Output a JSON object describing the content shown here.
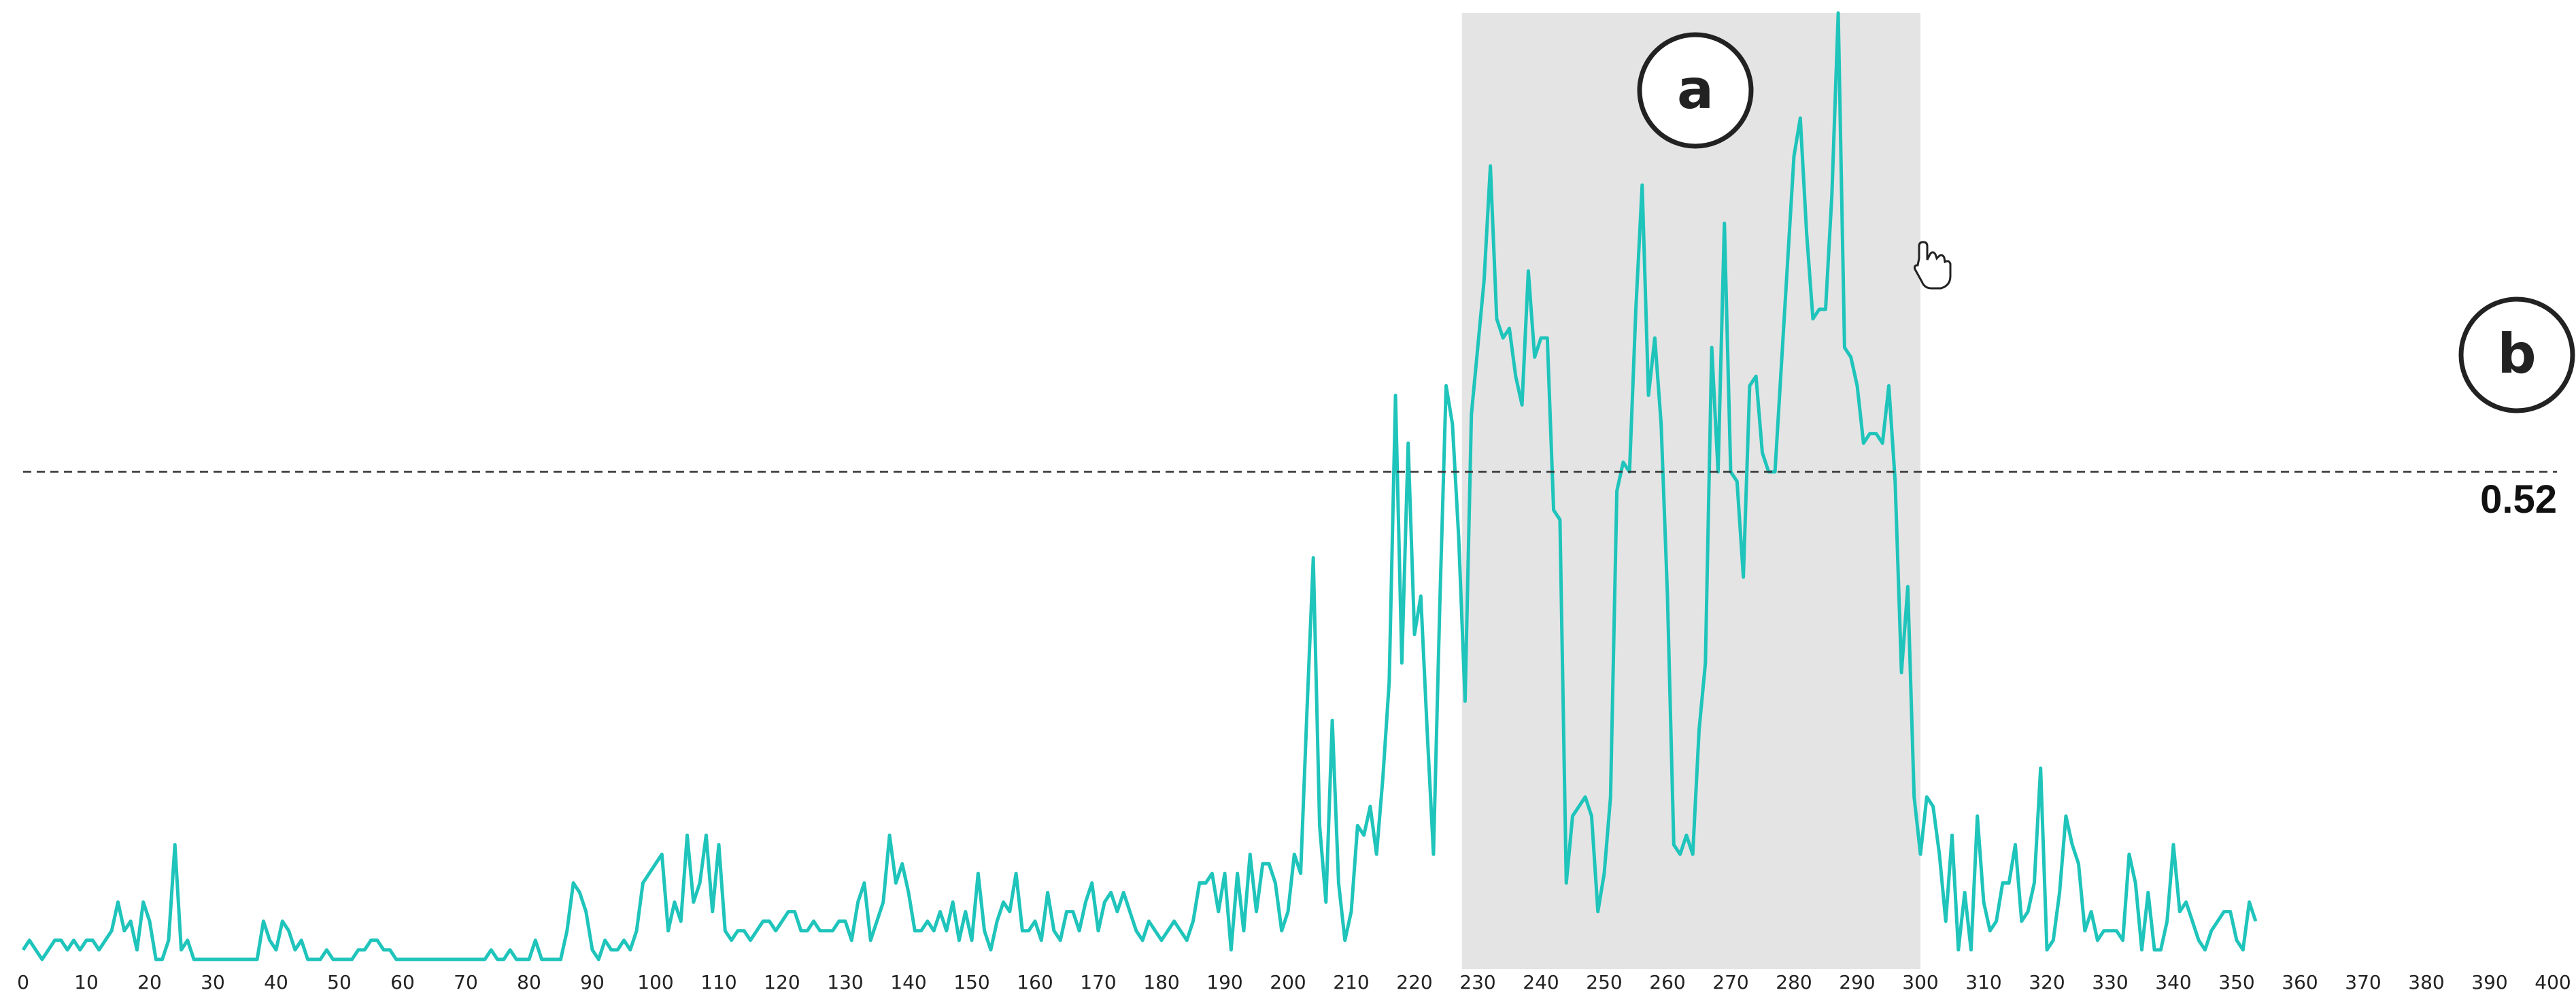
{
  "chart_data": {
    "type": "line",
    "color": "#1fc4bb",
    "xlim": [
      0,
      400
    ],
    "ylim": [
      0,
      1
    ],
    "xticks": [
      0,
      10,
      20,
      30,
      40,
      50,
      60,
      70,
      80,
      90,
      100,
      110,
      120,
      130,
      140,
      150,
      160,
      170,
      180,
      190,
      200,
      210,
      220,
      230,
      240,
      250,
      260,
      270,
      280,
      290,
      300,
      310,
      320,
      330,
      340,
      350,
      360,
      370,
      380,
      390,
      400
    ],
    "highlight": [
      227.5,
      300
    ],
    "threshold": 0.52,
    "annotations": [
      "a",
      "b"
    ],
    "x": [
      0,
      1,
      2,
      3,
      4,
      5,
      6,
      7,
      8,
      9,
      10,
      11,
      12,
      13,
      14,
      15,
      16,
      17,
      18,
      19,
      20,
      21,
      22,
      23,
      24,
      25,
      26,
      27,
      28,
      29,
      30,
      31,
      32,
      33,
      34,
      35,
      36,
      37,
      38,
      39,
      40,
      41,
      42,
      43,
      44,
      45,
      46,
      47,
      48,
      49,
      50,
      51,
      52,
      53,
      54,
      55,
      56,
      57,
      58,
      59,
      60,
      61,
      62,
      63,
      64,
      65,
      66,
      67,
      68,
      69,
      70,
      71,
      72,
      73,
      74,
      75,
      76,
      77,
      78,
      79,
      80,
      81,
      82,
      83,
      84,
      85,
      86,
      87,
      88,
      89,
      90,
      91,
      92,
      93,
      94,
      95,
      96,
      97,
      98,
      99,
      100,
      101,
      102,
      103,
      104,
      105,
      106,
      107,
      108,
      109,
      110,
      111,
      112,
      113,
      114,
      115,
      116,
      117,
      118,
      119,
      120,
      121,
      122,
      123,
      124,
      125,
      126,
      127,
      128,
      129,
      130,
      131,
      132,
      133,
      134,
      135,
      136,
      137,
      138,
      139,
      140,
      141,
      142,
      143,
      144,
      145,
      146,
      147,
      148,
      149,
      150,
      151,
      152,
      153,
      154,
      155,
      156,
      157,
      158,
      159,
      160,
      161,
      162,
      163,
      164,
      165,
      166,
      167,
      168,
      169,
      170,
      171,
      172,
      173,
      174,
      175,
      176,
      177,
      178,
      179,
      180,
      181,
      182,
      183,
      184,
      185,
      186,
      187,
      188,
      189,
      190,
      191,
      192,
      193,
      194,
      195,
      196,
      197,
      198,
      199,
      200,
      201,
      202,
      203,
      204,
      205,
      206,
      207,
      208,
      209,
      210,
      211,
      212,
      213,
      214,
      215,
      216,
      217,
      218,
      219,
      220,
      221,
      222,
      223,
      224,
      225,
      226,
      227,
      228,
      229,
      230,
      231,
      232,
      233,
      234,
      235,
      236,
      237,
      238,
      239,
      240,
      241,
      242,
      243,
      244,
      245,
      246,
      247,
      248,
      249,
      250,
      251,
      252,
      253,
      254,
      255,
      256,
      257,
      258,
      259,
      260,
      261,
      262,
      263,
      264,
      265,
      266,
      267,
      268,
      269,
      270,
      271,
      272,
      273,
      274,
      275,
      276,
      277,
      278,
      279,
      280,
      281,
      282,
      283,
      284,
      285,
      286,
      287,
      288,
      289,
      290,
      291,
      292,
      293,
      294,
      295,
      296,
      297,
      298,
      299,
      300,
      301,
      302,
      303,
      304,
      305,
      306,
      307,
      308,
      309,
      310,
      311,
      312,
      313,
      314,
      315,
      316,
      317,
      318,
      319,
      320,
      321,
      322,
      323,
      324,
      325,
      326,
      327,
      328,
      329,
      330,
      331,
      332,
      333,
      334,
      335,
      336,
      337,
      338,
      339,
      340,
      341,
      342,
      343,
      344,
      345,
      346,
      347,
      348,
      349,
      350,
      351,
      352,
      353
    ],
    "values": [
      0.02,
      0.03,
      0.02,
      0.01,
      0.02,
      0.03,
      0.03,
      0.02,
      0.03,
      0.02,
      0.03,
      0.03,
      0.02,
      0.03,
      0.04,
      0.07,
      0.04,
      0.05,
      0.02,
      0.07,
      0.05,
      0.01,
      0.01,
      0.03,
      0.13,
      0.02,
      0.03,
      0.01,
      0.01,
      0.01,
      0.01,
      0.01,
      0.01,
      0.01,
      0.01,
      0.01,
      0.01,
      0.01,
      0.05,
      0.03,
      0.02,
      0.05,
      0.04,
      0.02,
      0.03,
      0.01,
      0.01,
      0.01,
      0.02,
      0.01,
      0.01,
      0.01,
      0.01,
      0.02,
      0.02,
      0.03,
      0.03,
      0.02,
      0.02,
      0.01,
      0.01,
      0.01,
      0.01,
      0.01,
      0.01,
      0.01,
      0.01,
      0.01,
      0.01,
      0.01,
      0.01,
      0.01,
      0.01,
      0.01,
      0.02,
      0.01,
      0.01,
      0.02,
      0.01,
      0.01,
      0.01,
      0.03,
      0.01,
      0.01,
      0.01,
      0.01,
      0.04,
      0.09,
      0.08,
      0.06,
      0.02,
      0.01,
      0.03,
      0.02,
      0.02,
      0.03,
      0.02,
      0.04,
      0.09,
      0.1,
      0.11,
      0.12,
      0.04,
      0.07,
      0.05,
      0.14,
      0.07,
      0.09,
      0.14,
      0.06,
      0.13,
      0.04,
      0.03,
      0.04,
      0.04,
      0.03,
      0.04,
      0.05,
      0.05,
      0.04,
      0.05,
      0.06,
      0.06,
      0.04,
      0.04,
      0.05,
      0.04,
      0.04,
      0.04,
      0.05,
      0.05,
      0.03,
      0.07,
      0.09,
      0.03,
      0.05,
      0.07,
      0.14,
      0.09,
      0.11,
      0.08,
      0.04,
      0.04,
      0.05,
      0.04,
      0.06,
      0.04,
      0.07,
      0.03,
      0.06,
      0.03,
      0.1,
      0.04,
      0.02,
      0.05,
      0.07,
      0.06,
      0.1,
      0.04,
      0.04,
      0.05,
      0.03,
      0.08,
      0.04,
      0.03,
      0.06,
      0.06,
      0.04,
      0.07,
      0.09,
      0.04,
      0.07,
      0.08,
      0.06,
      0.08,
      0.06,
      0.04,
      0.03,
      0.05,
      0.04,
      0.03,
      0.04,
      0.05,
      0.04,
      0.03,
      0.05,
      0.09,
      0.09,
      0.1,
      0.06,
      0.1,
      0.02,
      0.1,
      0.04,
      0.12,
      0.06,
      0.11,
      0.11,
      0.09,
      0.04,
      0.06,
      0.12,
      0.1,
      0.27,
      0.43,
      0.15,
      0.07,
      0.26,
      0.09,
      0.03,
      0.06,
      0.15,
      0.14,
      0.17,
      0.12,
      0.2,
      0.3,
      0.6,
      0.32,
      0.55,
      0.35,
      0.39,
      0.25,
      0.12,
      0.38,
      0.61,
      0.57,
      0.45,
      0.28,
      0.58,
      0.65,
      0.72,
      0.84,
      0.68,
      0.66,
      0.67,
      0.62,
      0.59,
      0.73,
      0.64,
      0.66,
      0.66,
      0.48,
      0.47,
      0.09,
      0.16,
      0.17,
      0.18,
      0.16,
      0.06,
      0.1,
      0.18,
      0.5,
      0.53,
      0.52,
      0.69,
      0.82,
      0.6,
      0.66,
      0.57,
      0.39,
      0.13,
      0.12,
      0.14,
      0.12,
      0.25,
      0.32,
      0.65,
      0.52,
      0.78,
      0.52,
      0.51,
      0.41,
      0.61,
      0.62,
      0.54,
      0.52,
      0.52,
      0.63,
      0.74,
      0.85,
      0.89,
      0.77,
      0.68,
      0.69,
      0.69,
      0.81,
      1.0,
      0.65,
      0.64,
      0.61,
      0.55,
      0.56,
      0.56,
      0.55,
      0.61,
      0.51,
      0.31,
      0.4,
      0.18,
      0.12,
      0.18,
      0.17,
      0.12,
      0.05,
      0.14,
      0.02,
      0.08,
      0.02,
      0.16,
      0.07,
      0.04,
      0.05,
      0.09,
      0.09,
      0.13,
      0.05,
      0.06,
      0.09,
      0.21,
      0.02,
      0.03,
      0.08,
      0.16,
      0.13,
      0.11,
      0.04,
      0.06,
      0.03,
      0.04,
      0.04,
      0.04,
      0.03,
      0.12,
      0.09,
      0.02,
      0.08,
      0.02,
      0.02,
      0.05,
      0.13,
      0.06,
      0.07,
      0.05,
      0.03,
      0.02,
      0.04,
      0.05,
      0.06,
      0.06,
      0.03,
      0.02,
      0.07,
      0.05
    ]
  }
}
